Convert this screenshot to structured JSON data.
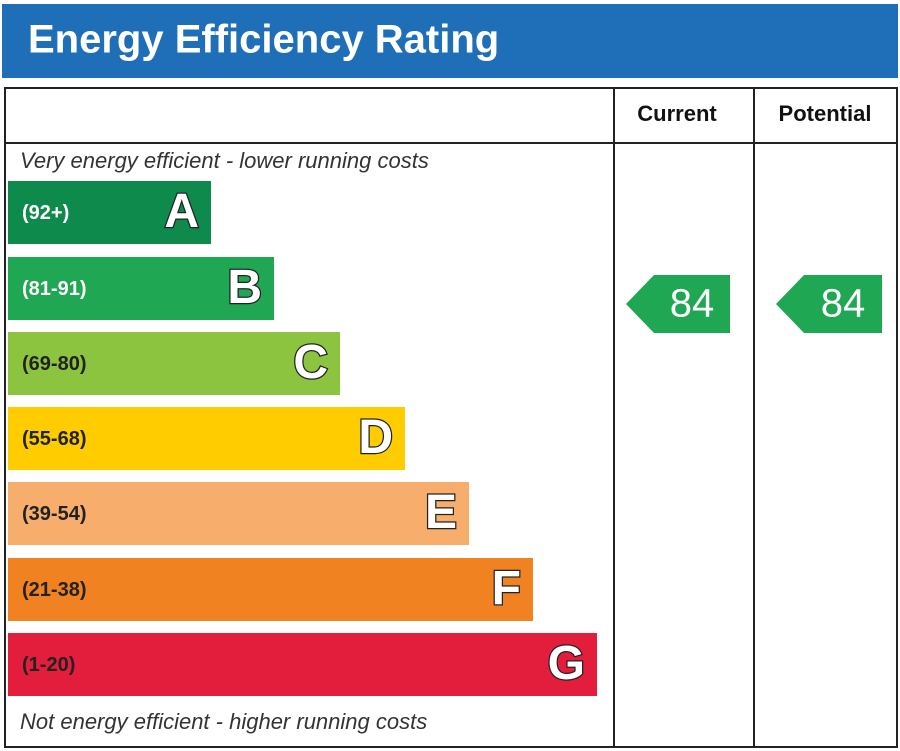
{
  "title": "Energy Efficiency Rating",
  "columns": [
    "Current",
    "Potential"
  ],
  "top_note": "Very energy efficient - lower running costs",
  "bottom_note": "Not energy efficient - higher running costs",
  "bands": [
    {
      "range": "(92+)",
      "letter": "A",
      "color": "#0f8a4d"
    },
    {
      "range": "(81-91)",
      "letter": "B",
      "color": "#20a753"
    },
    {
      "range": "(69-80)",
      "letter": "C",
      "color": "#8cc43f"
    },
    {
      "range": "(55-68)",
      "letter": "D",
      "color": "#ffcc00"
    },
    {
      "range": "(39-54)",
      "letter": "E",
      "color": "#f7ad6b"
    },
    {
      "range": "(21-38)",
      "letter": "F",
      "color": "#f08221"
    },
    {
      "range": "(1-20)",
      "letter": "G",
      "color": "#e31d3c"
    }
  ],
  "ratings": [
    84,
    84
  ]
}
